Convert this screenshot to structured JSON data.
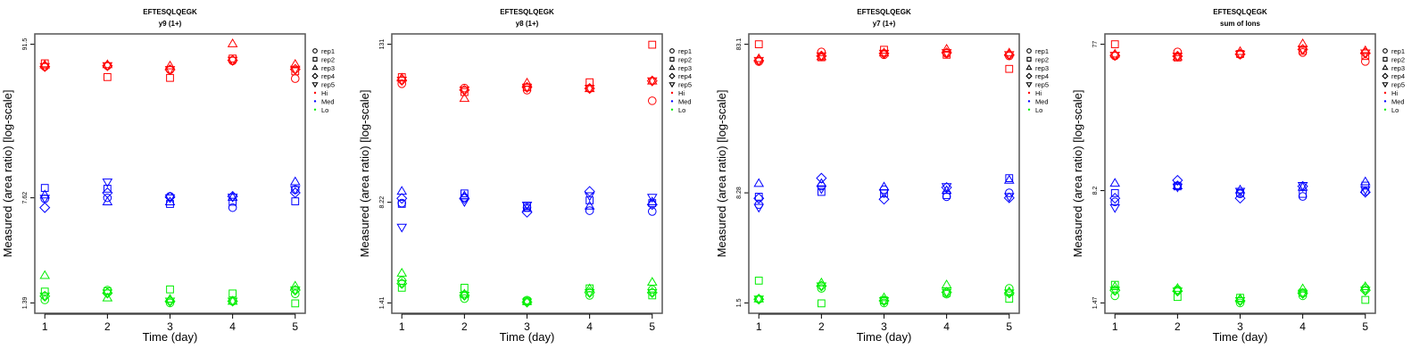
{
  "chart_data": [
    {
      "type": "scatter",
      "title": "EFTESQLQEGK",
      "subtitle": "y9 (1+)",
      "xlabel": "Time (day)",
      "ylabel": "Measured (area ratio) [log-scale]",
      "yscale": "log",
      "x": [
        1,
        2,
        3,
        4,
        5
      ],
      "xticks": [
        "1",
        "2",
        "3",
        "4",
        "5"
      ],
      "yticks": [
        "1.39",
        "7.62",
        "91.5"
      ],
      "ylim": [
        1.39,
        91.5
      ],
      "series": [
        {
          "level": "Hi",
          "rep": "rep1",
          "values": [
            63.7,
            64.6,
            60.6,
            69.9,
            52.5
          ]
        },
        {
          "level": "Hi",
          "rep": "rep2",
          "values": [
            67.2,
            53.8,
            53.1,
            72.6,
            59.1
          ]
        },
        {
          "level": "Hi",
          "rep": "rep3",
          "values": [
            65.6,
            65.9,
            64.6,
            92.4,
            66.3
          ]
        },
        {
          "level": "Hi",
          "rep": "rep4",
          "values": [
            63.7,
            64.6,
            60.6,
            70.5,
            61.0
          ]
        },
        {
          "level": "Hi",
          "rep": "rep5",
          "values": [
            63.7,
            64.6,
            60.6,
            70.5,
            61.0
          ]
        },
        {
          "level": "Med",
          "rep": "rep1",
          "values": [
            7.5,
            7.62,
            7.8,
            6.5,
            8.7
          ]
        },
        {
          "level": "Med",
          "rep": "rep2",
          "values": [
            8.94,
            8.83,
            6.9,
            7.15,
            7.2
          ]
        },
        {
          "level": "Med",
          "rep": "rep3",
          "values": [
            8.0,
            7.15,
            7.15,
            7.7,
            9.9
          ]
        },
        {
          "level": "Med",
          "rep": "rep4",
          "values": [
            6.5,
            8.27,
            7.7,
            7.8,
            8.27
          ]
        },
        {
          "level": "Med",
          "rep": "rep5",
          "values": [
            7.55,
            9.82,
            7.6,
            7.7,
            8.7
          ]
        },
        {
          "level": "Lo",
          "rep": "rep1",
          "values": [
            1.46,
            1.71,
            1.39,
            1.43,
            1.61
          ]
        },
        {
          "level": "Lo",
          "rep": "rep2",
          "values": [
            1.67,
            1.68,
            1.73,
            1.62,
            1.38
          ]
        },
        {
          "level": "Lo",
          "rep": "rep3",
          "values": [
            2.17,
            1.51,
            1.48,
            1.43,
            1.83
          ]
        },
        {
          "level": "Lo",
          "rep": "rep4",
          "values": [
            1.55,
            1.63,
            1.43,
            1.43,
            1.71
          ]
        },
        {
          "level": "Lo",
          "rep": "rep5",
          "values": [
            1.55,
            1.63,
            1.43,
            1.43,
            1.71
          ]
        }
      ]
    },
    {
      "type": "scatter",
      "title": "EFTESQLQEGK",
      "subtitle": "y8 (1+)",
      "xlabel": "Time (day)",
      "ylabel": "Measured (area ratio) [log-scale]",
      "yscale": "log",
      "x": [
        1,
        2,
        3,
        4,
        5
      ],
      "xticks": [
        "1",
        "2",
        "3",
        "4",
        "5"
      ],
      "yticks": [
        "1.41",
        "8.22",
        "131"
      ],
      "ylim": [
        1.41,
        131
      ],
      "series": [
        {
          "level": "Hi",
          "rep": "rep1",
          "values": [
            65.6,
            60.8,
            58.7,
            60.4,
            48.7
          ]
        },
        {
          "level": "Hi",
          "rep": "rep2",
          "values": [
            73.6,
            56.7,
            61.6,
            67.3,
            130
          ]
        },
        {
          "level": "Hi",
          "rep": "rep3",
          "values": [
            72.6,
            50.8,
            66.6,
            60.4,
            68.9
          ]
        },
        {
          "level": "Hi",
          "rep": "rep4",
          "values": [
            69.7,
            58.7,
            61.6,
            60.4,
            68.9
          ]
        },
        {
          "level": "Hi",
          "rep": "rep5",
          "values": [
            69.7,
            58.7,
            61.6,
            60.4,
            68.9
          ]
        },
        {
          "level": "Med",
          "rep": "rep1",
          "values": [
            8.1,
            8.95,
            7.5,
            7.1,
            7.0
          ]
        },
        {
          "level": "Med",
          "rep": "rep2",
          "values": [
            8.0,
            9.6,
            7.7,
            8.5,
            8.1
          ]
        },
        {
          "level": "Med",
          "rep": "rep3",
          "values": [
            10.0,
            9.2,
            7.4,
            7.7,
            8.3
          ]
        },
        {
          "level": "Med",
          "rep": "rep4",
          "values": [
            8.8,
            8.8,
            6.9,
            9.95,
            7.9
          ]
        },
        {
          "level": "Med",
          "rep": "rep5",
          "values": [
            5.3,
            8.3,
            7.8,
            9.2,
            8.95
          ]
        },
        {
          "level": "Lo",
          "rep": "rep1",
          "values": [
            2.08,
            1.52,
            1.48,
            1.61,
            1.78
          ]
        },
        {
          "level": "Lo",
          "rep": "rep2",
          "values": [
            1.84,
            1.84,
            1.45,
            1.82,
            1.61
          ]
        },
        {
          "level": "Lo",
          "rep": "rep3",
          "values": [
            2.38,
            1.65,
            1.45,
            1.81,
            2.03
          ]
        },
        {
          "level": "Lo",
          "rep": "rep4",
          "values": [
            1.98,
            1.61,
            1.43,
            1.69,
            1.69
          ]
        },
        {
          "level": "Lo",
          "rep": "rep5",
          "values": [
            1.98,
            1.61,
            1.43,
            1.69,
            1.69
          ]
        }
      ]
    },
    {
      "type": "scatter",
      "title": "EFTESQLQEGK",
      "subtitle": "y7 (1+)",
      "xlabel": "Time (day)",
      "ylabel": "Measured (area ratio) [log-scale]",
      "yscale": "log",
      "x": [
        1,
        2,
        3,
        4,
        5
      ],
      "xticks": [
        "1",
        "2",
        "3",
        "4",
        "5"
      ],
      "yticks": [
        "1.5",
        "8.28",
        "83.1"
      ],
      "ylim": [
        1.5,
        83.1
      ],
      "series": [
        {
          "level": "Hi",
          "rep": "rep1",
          "values": [
            63.5,
            73.8,
            70.6,
            72.1,
            69.3
          ]
        },
        {
          "level": "Hi",
          "rep": "rep2",
          "values": [
            83.1,
            67.9,
            76.3,
            70.6,
            56.7
          ]
        },
        {
          "level": "Hi",
          "rep": "rep3",
          "values": [
            66.6,
            68.6,
            72.8,
            77.2,
            72.8
          ]
        },
        {
          "level": "Hi",
          "rep": "rep4",
          "values": [
            64.5,
            69.3,
            72.1,
            72.8,
            70.6
          ]
        },
        {
          "level": "Hi",
          "rep": "rep5",
          "values": [
            64.5,
            69.3,
            72.1,
            72.8,
            70.6
          ]
        },
        {
          "level": "Med",
          "rep": "rep1",
          "values": [
            6.9,
            9.2,
            8.7,
            7.8,
            8.28
          ]
        },
        {
          "level": "Med",
          "rep": "rep2",
          "values": [
            7.8,
            8.4,
            8.2,
            8.0,
            10.4
          ]
        },
        {
          "level": "Med",
          "rep": "rep3",
          "values": [
            9.6,
            9.6,
            9.1,
            8.6,
            10.1
          ]
        },
        {
          "level": "Med",
          "rep": "rep4",
          "values": [
            7.6,
            10.4,
            7.5,
            9.0,
            7.66
          ]
        },
        {
          "level": "Med",
          "rep": "rep5",
          "values": [
            6.6,
            8.8,
            8.28,
            9.1,
            7.8
          ]
        },
        {
          "level": "Lo",
          "rep": "rep1",
          "values": [
            1.59,
            1.88,
            1.5,
            1.72,
            1.88
          ]
        },
        {
          "level": "Lo",
          "rep": "rep2",
          "values": [
            2.12,
            1.49,
            1.56,
            1.75,
            1.6
          ]
        },
        {
          "level": "Lo",
          "rep": "rep3",
          "values": [
            1.6,
            2.05,
            1.63,
            1.99,
            1.79
          ]
        },
        {
          "level": "Lo",
          "rep": "rep4",
          "values": [
            1.59,
            1.95,
            1.55,
            1.77,
            1.75
          ]
        },
        {
          "level": "Lo",
          "rep": "rep5",
          "values": [
            1.59,
            1.95,
            1.55,
            1.77,
            1.75
          ]
        }
      ]
    },
    {
      "type": "scatter",
      "title": "EFTESQLQEGK",
      "subtitle": "sum of Ions",
      "xlabel": "Time (day)",
      "ylabel": "Measured (area ratio) [log-scale]",
      "yscale": "log",
      "x": [
        1,
        2,
        3,
        4,
        5
      ],
      "xticks": [
        "1",
        "2",
        "3",
        "4",
        "5"
      ],
      "yticks": [
        "1.47",
        "8.2",
        "77"
      ],
      "ylim": [
        1.47,
        77
      ],
      "series": [
        {
          "level": "Hi",
          "rep": "rep1",
          "values": [
            64.3,
            68.5,
            65.8,
            67.9,
            59.2
          ]
        },
        {
          "level": "Hi",
          "rep": "rep2",
          "values": [
            77,
            62.9,
            66.4,
            69.7,
            64.3
          ]
        },
        {
          "level": "Hi",
          "rep": "rep3",
          "values": [
            66.4,
            63.5,
            69.1,
            77.7,
            69.9
          ]
        },
        {
          "level": "Hi",
          "rep": "rep4",
          "values": [
            64.9,
            64.1,
            66.1,
            71.2,
            67.3
          ]
        },
        {
          "level": "Hi",
          "rep": "rep5",
          "values": [
            64.9,
            64.1,
            66.1,
            71.2,
            67.3
          ]
        },
        {
          "level": "Med",
          "rep": "rep1",
          "values": [
            6.9,
            8.85,
            7.8,
            7.5,
            8.1
          ]
        },
        {
          "level": "Med",
          "rep": "rep2",
          "values": [
            7.9,
            8.75,
            7.9,
            7.8,
            8.85
          ]
        },
        {
          "level": "Med",
          "rep": "rep3",
          "values": [
            9.2,
            8.85,
            8.3,
            8.65,
            9.4
          ]
        },
        {
          "level": "Med",
          "rep": "rep4",
          "values": [
            7.3,
            9.6,
            7.3,
            8.75,
            8.0
          ]
        },
        {
          "level": "Med",
          "rep": "rep5",
          "values": [
            6.3,
            8.65,
            8.1,
            8.85,
            8.3
          ]
        },
        {
          "level": "Lo",
          "rep": "rep1",
          "values": [
            1.64,
            1.8,
            1.47,
            1.64,
            1.84
          ]
        },
        {
          "level": "Lo",
          "rep": "rep2",
          "values": [
            1.94,
            1.61,
            1.59,
            1.72,
            1.54
          ]
        },
        {
          "level": "Lo",
          "rep": "rep3",
          "values": [
            1.89,
            1.84,
            1.57,
            1.83,
            1.89
          ]
        },
        {
          "level": "Lo",
          "rep": "rep4",
          "values": [
            1.78,
            1.76,
            1.52,
            1.7,
            1.78
          ]
        },
        {
          "level": "Lo",
          "rep": "rep5",
          "values": [
            1.78,
            1.76,
            1.52,
            1.7,
            1.78
          ]
        }
      ]
    }
  ],
  "legend": {
    "placement": "right",
    "shapes": [
      {
        "label": "rep1",
        "shape": "circle"
      },
      {
        "label": "rep2",
        "shape": "square"
      },
      {
        "label": "rep3",
        "shape": "triangle-up"
      },
      {
        "label": "rep4",
        "shape": "diamond"
      },
      {
        "label": "rep5",
        "shape": "triangle-down"
      }
    ],
    "colors": [
      {
        "label": "Hi",
        "color": "#FF0000"
      },
      {
        "label": "Med",
        "color": "#0000FF"
      },
      {
        "label": "Lo",
        "color": "#00EE00"
      }
    ]
  }
}
